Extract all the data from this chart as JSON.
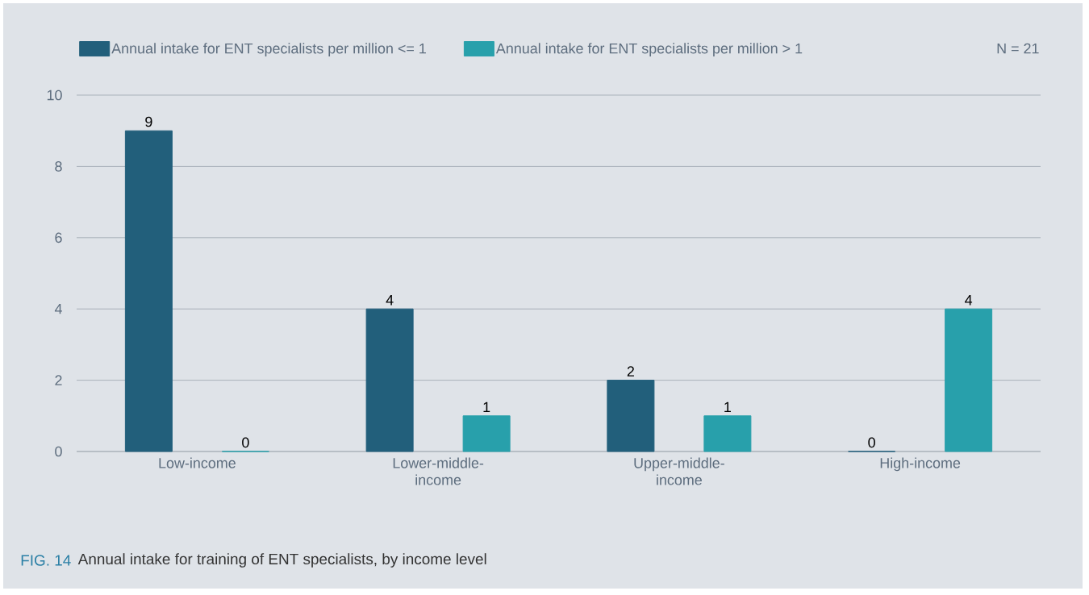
{
  "chart_data": {
    "type": "bar",
    "categories": [
      "Low-income",
      "Lower-middle-income",
      "Upper-middle-income",
      "High-income"
    ],
    "series": [
      {
        "name": "Annual intake for ENT specialists per million <= 1",
        "color": "#225f7b",
        "values": [
          9,
          4,
          2,
          0
        ]
      },
      {
        "name": "Annual intake for ENT specialists per million > 1",
        "color": "#28a0ab",
        "values": [
          0,
          1,
          1,
          4
        ]
      }
    ],
    "ylim": [
      0,
      10
    ],
    "yticks": [
      0,
      2,
      4,
      6,
      8,
      10
    ],
    "grid": "y",
    "legend": "top left",
    "data_labels": true,
    "annotations": [
      "N = 21",
      "FIG. 14",
      "Annual intake for training of ENT specialists, by income level"
    ]
  }
}
